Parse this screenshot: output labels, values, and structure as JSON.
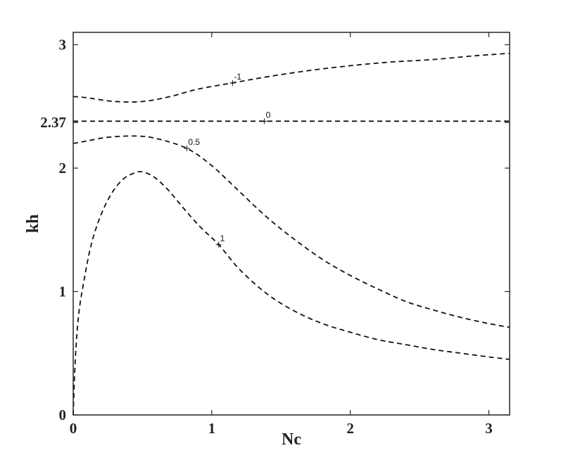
{
  "chart_data": {
    "type": "line",
    "title": "",
    "xlabel": "Nc",
    "ylabel": "kh",
    "xlim": [
      0,
      3.15
    ],
    "ylim": [
      0,
      3.1
    ],
    "grid": false,
    "x_ticks": [
      {
        "value": 0,
        "label": "0"
      },
      {
        "value": 1,
        "label": "1"
      },
      {
        "value": 2,
        "label": "2"
      },
      {
        "value": 3,
        "label": "3"
      }
    ],
    "y_ticks": [
      {
        "value": 0,
        "label": "0"
      },
      {
        "value": 1,
        "label": "1"
      },
      {
        "value": 2,
        "label": "2"
      },
      {
        "value": 2.37,
        "label": "2.37"
      },
      {
        "value": 3,
        "label": "3"
      }
    ],
    "series": [
      {
        "label": "-1",
        "label_at": [
          1.15,
          2.69
        ],
        "points": [
          [
            0,
            2.58
          ],
          [
            0.1,
            2.57
          ],
          [
            0.3,
            2.54
          ],
          [
            0.5,
            2.54
          ],
          [
            0.7,
            2.58
          ],
          [
            0.9,
            2.64
          ],
          [
            1.15,
            2.69
          ],
          [
            1.4,
            2.74
          ],
          [
            1.7,
            2.79
          ],
          [
            2.0,
            2.83
          ],
          [
            2.3,
            2.86
          ],
          [
            2.6,
            2.88
          ],
          [
            2.9,
            2.91
          ],
          [
            3.15,
            2.93
          ]
        ]
      },
      {
        "label": "0",
        "label_at": [
          1.38,
          2.38
        ],
        "points": [
          [
            0,
            2.38
          ],
          [
            0.5,
            2.38
          ],
          [
            1.0,
            2.38
          ],
          [
            1.5,
            2.38
          ],
          [
            2.0,
            2.38
          ],
          [
            2.5,
            2.38
          ],
          [
            3.15,
            2.38
          ]
        ]
      },
      {
        "label": "0.5",
        "label_at": [
          0.82,
          2.16
        ],
        "points": [
          [
            0,
            2.2
          ],
          [
            0.1,
            2.22
          ],
          [
            0.25,
            2.25
          ],
          [
            0.45,
            2.26
          ],
          [
            0.6,
            2.24
          ],
          [
            0.82,
            2.16
          ],
          [
            1.0,
            2.02
          ],
          [
            1.2,
            1.81
          ],
          [
            1.4,
            1.6
          ],
          [
            1.6,
            1.42
          ],
          [
            1.8,
            1.26
          ],
          [
            2.0,
            1.13
          ],
          [
            2.2,
            1.02
          ],
          [
            2.4,
            0.92
          ],
          [
            2.6,
            0.85
          ],
          [
            2.8,
            0.79
          ],
          [
            3.0,
            0.74
          ],
          [
            3.15,
            0.71
          ]
        ]
      },
      {
        "label": "1",
        "label_at": [
          1.05,
          1.38
        ],
        "points": [
          [
            0,
            0
          ],
          [
            0.015,
            0.45
          ],
          [
            0.04,
            0.82
          ],
          [
            0.08,
            1.1
          ],
          [
            0.13,
            1.38
          ],
          [
            0.2,
            1.62
          ],
          [
            0.28,
            1.8
          ],
          [
            0.36,
            1.91
          ],
          [
            0.44,
            1.96
          ],
          [
            0.5,
            1.97
          ],
          [
            0.58,
            1.93
          ],
          [
            0.68,
            1.83
          ],
          [
            0.8,
            1.67
          ],
          [
            0.92,
            1.52
          ],
          [
            1.05,
            1.38
          ],
          [
            1.2,
            1.18
          ],
          [
            1.4,
            0.98
          ],
          [
            1.6,
            0.84
          ],
          [
            1.8,
            0.74
          ],
          [
            2.0,
            0.67
          ],
          [
            2.2,
            0.61
          ],
          [
            2.4,
            0.57
          ],
          [
            2.6,
            0.53
          ],
          [
            2.8,
            0.5
          ],
          [
            3.0,
            0.47
          ],
          [
            3.15,
            0.45
          ]
        ]
      }
    ]
  }
}
